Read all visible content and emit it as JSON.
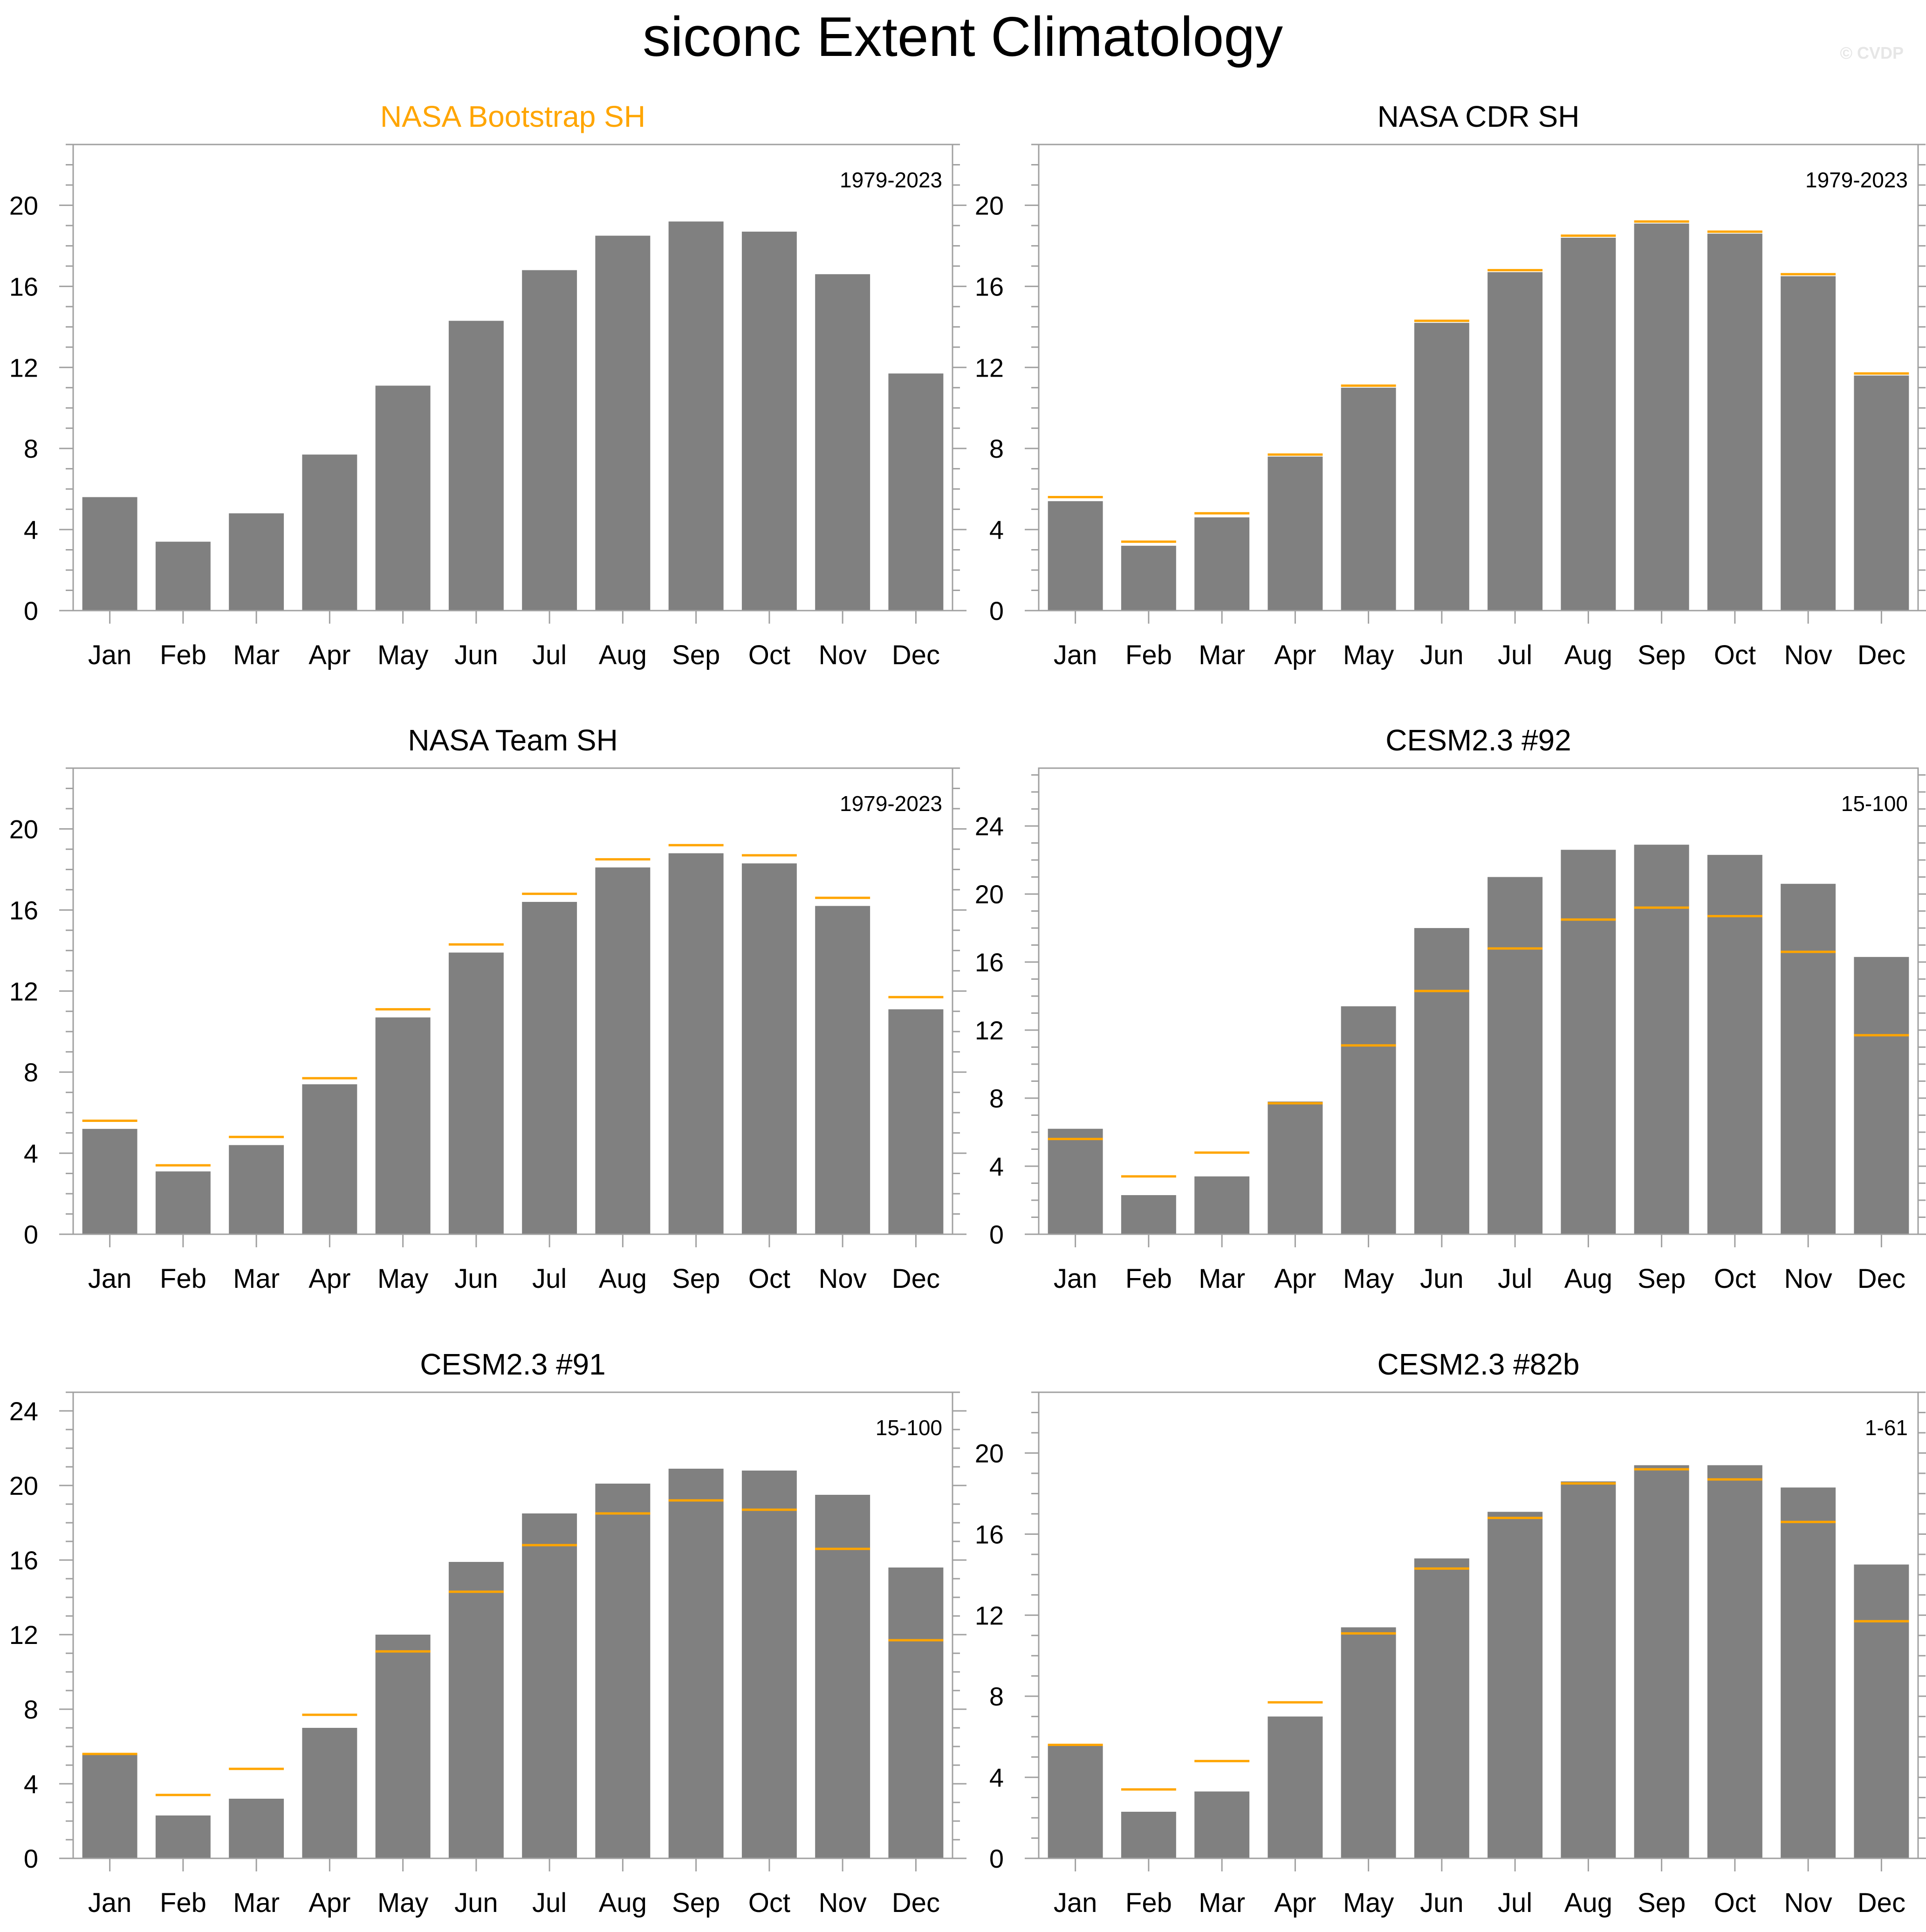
{
  "title": "siconc Extent Climatology",
  "watermark": "© CVDP",
  "colors": {
    "bar": "#808080",
    "reference_line": "#ffa500",
    "highlight_title": "#ffa500",
    "axis": "#a0a0a0",
    "text": "#000000"
  },
  "chart_data": [
    {
      "type": "bar",
      "title": "NASA Bootstrap SH",
      "title_color": "#ffa500",
      "period": "1979-2023",
      "categories": [
        "Jan",
        "Feb",
        "Mar",
        "Apr",
        "May",
        "Jun",
        "Jul",
        "Aug",
        "Sep",
        "Oct",
        "Nov",
        "Dec"
      ],
      "values": [
        5.6,
        3.4,
        4.8,
        7.7,
        11.1,
        14.3,
        16.8,
        18.5,
        19.2,
        18.7,
        16.6,
        11.7
      ],
      "reference_values": null,
      "yticks": [
        0,
        4,
        8,
        12,
        16,
        20
      ],
      "ylim": [
        0,
        23
      ],
      "xlabel": "",
      "ylabel": ""
    },
    {
      "type": "bar",
      "title": "NASA CDR SH",
      "title_color": "#000000",
      "period": "1979-2023",
      "categories": [
        "Jan",
        "Feb",
        "Mar",
        "Apr",
        "May",
        "Jun",
        "Jul",
        "Aug",
        "Sep",
        "Oct",
        "Nov",
        "Dec"
      ],
      "values": [
        5.4,
        3.2,
        4.6,
        7.6,
        11.0,
        14.2,
        16.7,
        18.4,
        19.1,
        18.6,
        16.5,
        11.6
      ],
      "reference_values": [
        5.6,
        3.4,
        4.8,
        7.7,
        11.1,
        14.3,
        16.8,
        18.5,
        19.2,
        18.7,
        16.6,
        11.7
      ],
      "yticks": [
        0,
        4,
        8,
        12,
        16,
        20
      ],
      "ylim": [
        0,
        23
      ],
      "xlabel": "",
      "ylabel": ""
    },
    {
      "type": "bar",
      "title": "NASA Team SH",
      "title_color": "#000000",
      "period": "1979-2023",
      "categories": [
        "Jan",
        "Feb",
        "Mar",
        "Apr",
        "May",
        "Jun",
        "Jul",
        "Aug",
        "Sep",
        "Oct",
        "Nov",
        "Dec"
      ],
      "values": [
        5.2,
        3.1,
        4.4,
        7.4,
        10.7,
        13.9,
        16.4,
        18.1,
        18.8,
        18.3,
        16.2,
        11.1
      ],
      "reference_values": [
        5.6,
        3.4,
        4.8,
        7.7,
        11.1,
        14.3,
        16.8,
        18.5,
        19.2,
        18.7,
        16.6,
        11.7
      ],
      "yticks": [
        0,
        4,
        8,
        12,
        16,
        20
      ],
      "ylim": [
        0,
        23
      ],
      "xlabel": "",
      "ylabel": ""
    },
    {
      "type": "bar",
      "title": "CESM2.3 #92",
      "title_color": "#000000",
      "period": "15-100",
      "categories": [
        "Jan",
        "Feb",
        "Mar",
        "Apr",
        "May",
        "Jun",
        "Jul",
        "Aug",
        "Sep",
        "Oct",
        "Nov",
        "Dec"
      ],
      "values": [
        6.2,
        2.3,
        3.4,
        7.8,
        13.4,
        18.0,
        21.0,
        22.6,
        22.9,
        22.3,
        20.6,
        16.3
      ],
      "reference_values": [
        5.6,
        3.4,
        4.8,
        7.7,
        11.1,
        14.3,
        16.8,
        18.5,
        19.2,
        18.7,
        16.6,
        11.7
      ],
      "yticks": [
        0,
        4,
        8,
        12,
        16,
        20,
        24
      ],
      "ylim": [
        0,
        27.4
      ],
      "xlabel": "",
      "ylabel": ""
    },
    {
      "type": "bar",
      "title": "CESM2.3 #91",
      "title_color": "#000000",
      "period": "15-100",
      "categories": [
        "Jan",
        "Feb",
        "Mar",
        "Apr",
        "May",
        "Jun",
        "Jul",
        "Aug",
        "Sep",
        "Oct",
        "Nov",
        "Dec"
      ],
      "values": [
        5.6,
        2.3,
        3.2,
        7.0,
        12.0,
        15.9,
        18.5,
        20.1,
        20.9,
        20.8,
        19.5,
        15.6
      ],
      "reference_values": [
        5.6,
        3.4,
        4.8,
        7.7,
        11.1,
        14.3,
        16.8,
        18.5,
        19.2,
        18.7,
        16.6,
        11.7
      ],
      "yticks": [
        0,
        4,
        8,
        12,
        16,
        20,
        24
      ],
      "ylim": [
        0,
        25
      ],
      "xlabel": "",
      "ylabel": ""
    },
    {
      "type": "bar",
      "title": "CESM2.3 #82b",
      "title_color": "#000000",
      "period": "1-61",
      "categories": [
        "Jan",
        "Feb",
        "Mar",
        "Apr",
        "May",
        "Jun",
        "Jul",
        "Aug",
        "Sep",
        "Oct",
        "Nov",
        "Dec"
      ],
      "values": [
        5.6,
        2.3,
        3.3,
        7.0,
        11.4,
        14.8,
        17.1,
        18.6,
        19.4,
        19.4,
        18.3,
        14.5
      ],
      "reference_values": [
        5.6,
        3.4,
        4.8,
        7.7,
        11.1,
        14.3,
        16.8,
        18.5,
        19.2,
        18.7,
        16.6,
        11.7
      ],
      "yticks": [
        0,
        4,
        8,
        12,
        16,
        20
      ],
      "ylim": [
        0,
        23
      ],
      "xlabel": "",
      "ylabel": ""
    }
  ]
}
